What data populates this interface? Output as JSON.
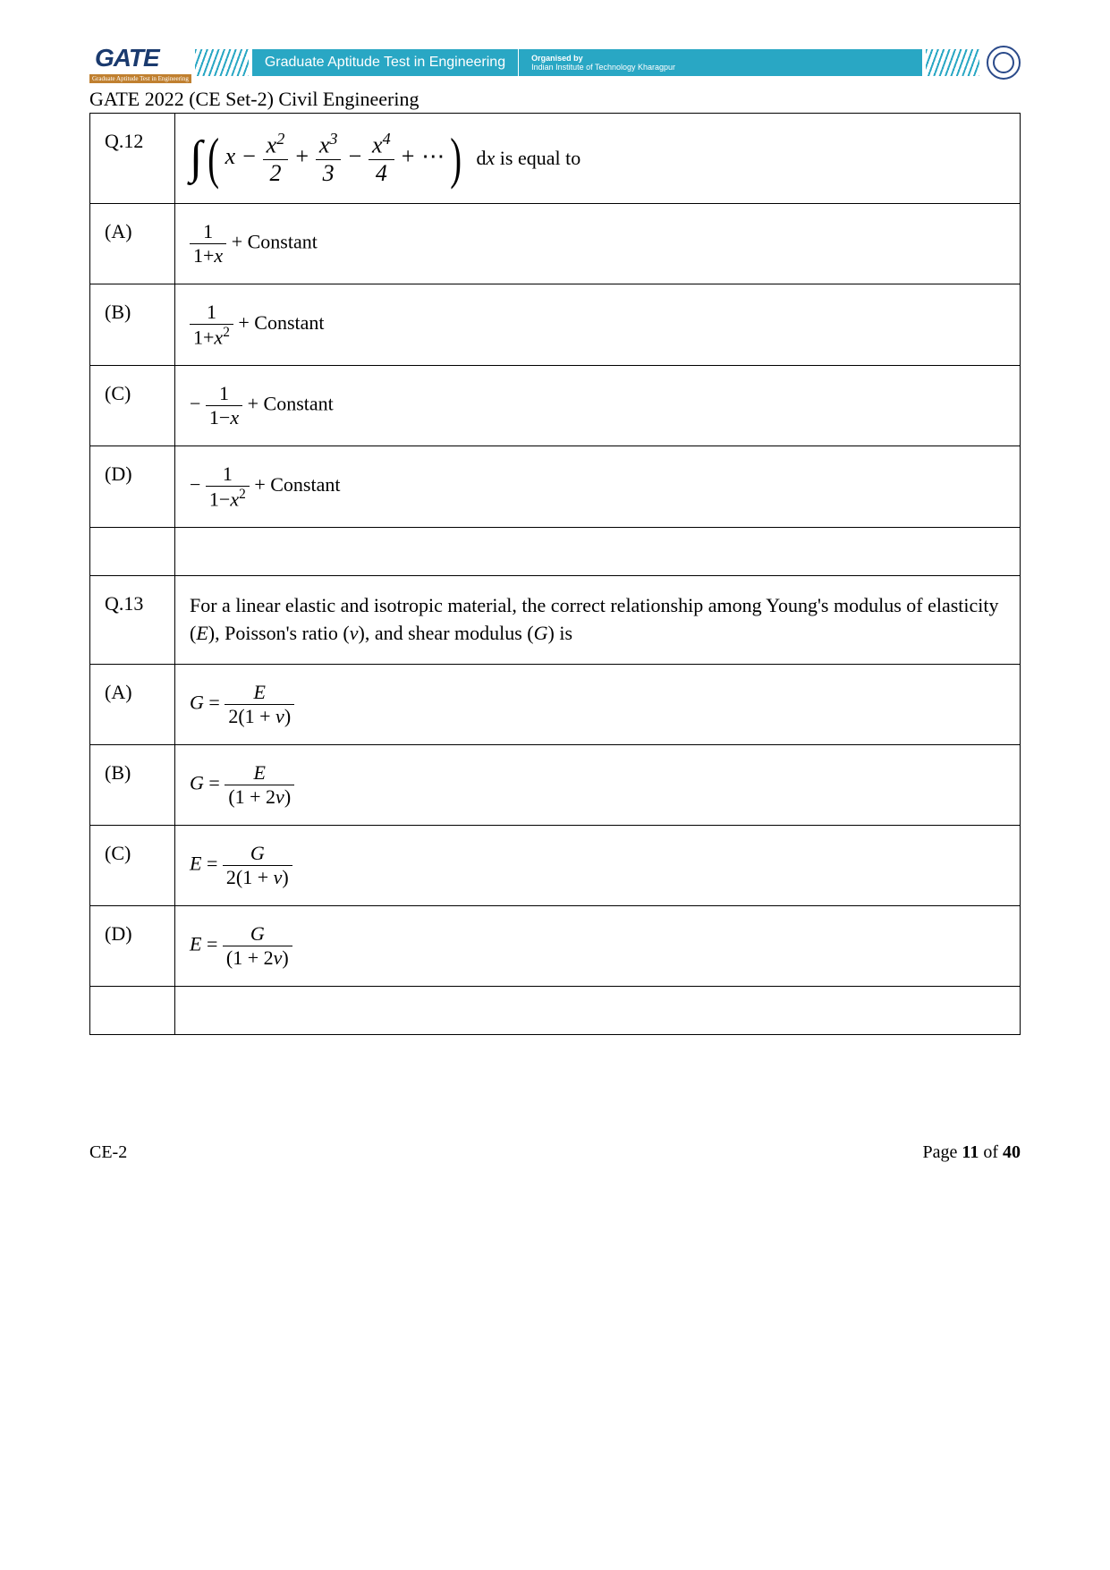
{
  "header": {
    "logo_text": "GATE",
    "logo_sub": "Graduate Aptitude Test in Engineering",
    "banner_left": "Graduate Aptitude Test in Engineering",
    "banner_org": "Organised by",
    "banner_inst": "Indian Institute of Technology Kharagpur"
  },
  "page_title": "GATE 2022 (CE Set-2) Civil Engineering",
  "q12": {
    "label": "Q.12",
    "tail_text": "d",
    "tail_var": "x",
    "equal_text": "  is equal to",
    "series": {
      "term1": "x",
      "t2num": "x",
      "t2pow": "2",
      "t2den": "2",
      "t3num": "x",
      "t3pow": "3",
      "t3den": "3",
      "t4num": "x",
      "t4pow": "4",
      "t4den": "4",
      "dots": "⋯"
    },
    "optA": {
      "label": "(A)",
      "num": "1",
      "den_pre": "1+",
      "den_var": "x",
      "const": " + Constant"
    },
    "optB": {
      "label": "(B)",
      "num": "1",
      "den_pre": "1+",
      "den_var": "x",
      "den_pow": "2",
      "const": " + Constant"
    },
    "optC": {
      "label": "(C)",
      "minus": "− ",
      "num": "1",
      "den_pre": "1−",
      "den_var": "x",
      "const": "  + Constant"
    },
    "optD": {
      "label": "(D)",
      "minus": "− ",
      "num": "1",
      "den_pre": "1−",
      "den_var": "x",
      "den_pow": "2",
      "const": " + Constant"
    }
  },
  "q13": {
    "label": "Q.13",
    "text_1": "For a linear elastic and isotropic material, the correct relationship among Young's modulus of elasticity (",
    "E": "E",
    "text_2": "), Poisson's ratio (",
    "nu": "ν",
    "text_3": "), and shear modulus (",
    "G": "G",
    "text_4": ") is",
    "optA": {
      "label": "(A)",
      "lhs": "G",
      "eq": " = ",
      "num": "E",
      "den": "2(1 + ν)"
    },
    "optB": {
      "label": "(B)",
      "lhs": "G",
      "eq": " = ",
      "num": "E",
      "den": "(1 + 2ν)"
    },
    "optC": {
      "label": "(C)",
      "lhs": "E",
      "eq": " = ",
      "num": "G",
      "den": "2(1 + ν)"
    },
    "optD": {
      "label": "(D)",
      "lhs": "E",
      "eq": " = ",
      "num": "G",
      "den": "(1 + 2ν)"
    }
  },
  "footer": {
    "left": "CE-2",
    "right_pre": "Page ",
    "page": "11",
    "right_mid": " of ",
    "total": "40"
  }
}
